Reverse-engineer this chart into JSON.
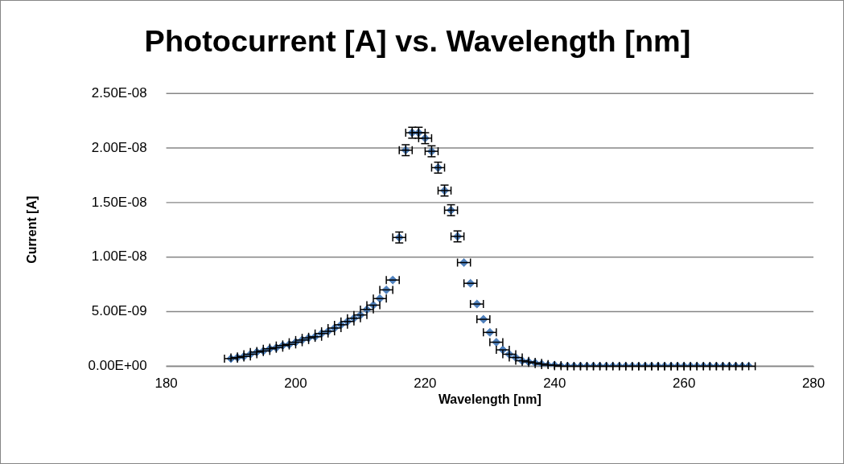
{
  "chart_data": {
    "type": "scatter",
    "title": "Photocurrent [A] vs. Wavelength [nm]",
    "xlabel": "Wavelength [nm]",
    "ylabel": "Current [A]",
    "x": [
      190,
      191,
      192,
      193,
      194,
      195,
      196,
      197,
      198,
      199,
      200,
      201,
      202,
      203,
      204,
      205,
      206,
      207,
      208,
      209,
      210,
      211,
      212,
      213,
      214,
      215,
      216,
      217,
      218,
      219,
      220,
      221,
      222,
      223,
      224,
      225,
      226,
      227,
      228,
      229,
      230,
      231,
      232,
      233,
      234,
      235,
      236,
      237,
      238,
      239,
      240,
      241,
      242,
      243,
      244,
      245,
      246,
      247,
      248,
      249,
      250,
      251,
      252,
      253,
      254,
      255,
      256,
      257,
      258,
      259,
      260,
      261,
      262,
      263,
      264,
      265,
      266,
      267,
      268,
      269,
      270
    ],
    "values": [
      7e-10,
      8e-10,
      9e-10,
      1.1e-09,
      1.3e-09,
      1.4e-09,
      1.6e-09,
      1.7e-09,
      1.9e-09,
      2e-09,
      2.2e-09,
      2.4e-09,
      2.6e-09,
      2.7e-09,
      3e-09,
      3.2e-09,
      3.5e-09,
      3.8e-09,
      4.1e-09,
      4.4e-09,
      4.7e-09,
      5.2e-09,
      5.6e-09,
      6.2e-09,
      7e-09,
      7.9e-09,
      1.18e-08,
      1.98e-08,
      2.14e-08,
      2.14e-08,
      2.09e-08,
      1.97e-08,
      1.82e-08,
      1.61e-08,
      1.43e-08,
      1.19e-08,
      9.5e-09,
      7.6e-09,
      5.7e-09,
      4.3e-09,
      3.1e-09,
      2.2e-09,
      1.5e-09,
      1.1e-09,
      8e-10,
      5e-10,
      4e-10,
      3e-10,
      2e-10,
      1e-10,
      1e-10,
      0,
      0,
      0,
      0,
      0,
      0,
      0,
      0,
      0,
      0,
      0,
      0,
      0,
      0,
      0,
      0,
      0,
      0,
      0,
      0,
      0,
      0,
      0,
      0,
      0,
      0,
      0,
      0,
      0,
      0
    ],
    "errors": [
      null,
      null,
      null,
      null,
      null,
      null,
      null,
      null,
      null,
      null,
      null,
      null,
      null,
      null,
      null,
      null,
      null,
      null,
      null,
      null,
      null,
      null,
      null,
      null,
      null,
      null,
      5e-10,
      5e-10,
      5e-10,
      5e-10,
      5e-10,
      5e-10,
      5e-10,
      5e-10,
      5e-10,
      5e-10,
      null,
      null,
      null,
      null,
      null,
      null,
      null,
      null,
      null,
      null,
      null,
      null,
      null,
      null,
      null,
      null,
      null,
      null,
      null,
      null,
      null,
      null,
      null,
      null,
      null,
      null,
      null,
      null,
      null,
      null,
      null,
      null,
      null,
      null,
      null,
      null,
      null,
      null,
      null,
      null,
      null,
      null,
      null,
      null,
      null
    ],
    "xerrors": [
      1,
      1,
      1,
      1,
      1,
      1,
      1,
      1,
      1,
      1,
      1,
      1,
      1,
      1,
      1,
      1,
      1,
      1,
      1,
      1,
      1,
      1,
      1,
      1,
      1,
      1,
      1,
      1,
      1,
      1,
      1,
      1,
      1,
      1,
      1,
      1,
      1,
      1,
      1,
      1,
      1,
      1,
      1,
      1,
      1,
      1,
      1,
      1,
      1,
      1,
      1,
      1,
      1,
      1,
      1,
      1,
      1,
      1,
      1,
      1,
      1,
      1,
      1,
      1,
      1,
      1,
      1,
      1,
      1,
      1,
      1,
      1,
      1,
      1,
      1,
      1,
      1,
      1,
      1,
      1,
      1
    ],
    "color": "#4f81bd",
    "marker": "diamond",
    "grid": "y",
    "legend": false,
    "xlim": [
      180,
      280
    ],
    "xticks": [
      180,
      200,
      220,
      240,
      260,
      280
    ],
    "ylim": [
      0,
      2.5e-08
    ],
    "yticks": [
      {
        "value": 0,
        "label": "0.00E+00"
      },
      {
        "value": 5e-09,
        "label": "5.00E-09"
      },
      {
        "value": 1e-08,
        "label": "1.00E-08"
      },
      {
        "value": 1.5e-08,
        "label": "1.50E-08"
      },
      {
        "value": 2e-08,
        "label": "2.00E-08"
      },
      {
        "value": 2.5e-08,
        "label": "2.50E-08"
      }
    ]
  }
}
